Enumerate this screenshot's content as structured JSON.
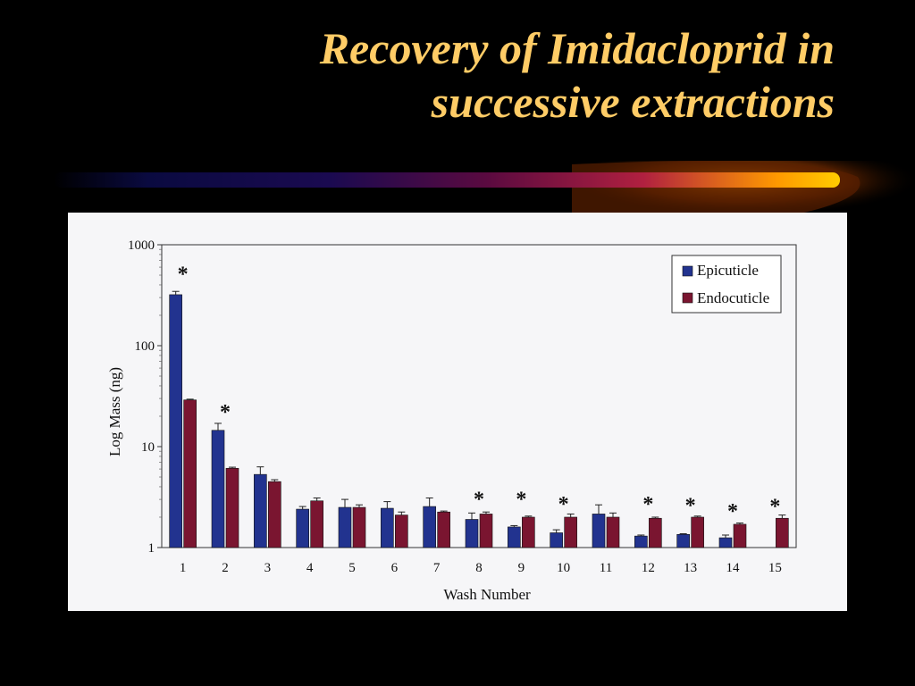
{
  "slide": {
    "title_line1": "Recovery of Imidacloprid in",
    "title_line2": "successive extractions"
  },
  "colors": {
    "title": "#ffcc66",
    "background": "#000000",
    "epicuticle": "#22338f",
    "endocuticle": "#7a1530",
    "panel": "#f6f6f8"
  },
  "chart_data": {
    "type": "bar",
    "title": "",
    "xlabel": "Wash Number",
    "ylabel": "Log Mass (ng)",
    "y_scale": "log",
    "ylim": [
      1,
      1000
    ],
    "y_ticks": [
      1,
      10,
      100,
      1000
    ],
    "y_tick_labels": [
      "1",
      "10",
      "100",
      "1000"
    ],
    "categories": [
      "1",
      "2",
      "3",
      "4",
      "5",
      "6",
      "7",
      "8",
      "9",
      "10",
      "11",
      "12",
      "13",
      "14",
      "15"
    ],
    "series": [
      {
        "name": "Epicuticle",
        "values": [
          320,
          14.5,
          5.3,
          2.4,
          2.5,
          2.45,
          2.55,
          1.9,
          1.6,
          1.4,
          2.15,
          1.3,
          1.35,
          1.25,
          null
        ],
        "error": [
          25,
          2.5,
          1.0,
          0.15,
          0.5,
          0.4,
          0.55,
          0.3,
          0.05,
          0.1,
          0.5,
          0.03,
          0.02,
          0.08,
          null
        ]
      },
      {
        "name": "Endocuticle",
        "values": [
          29,
          6.1,
          4.5,
          2.9,
          2.5,
          2.1,
          2.25,
          2.15,
          2.0,
          2.0,
          2.0,
          1.95,
          2.0,
          1.7,
          1.95
        ],
        "error": [
          0.5,
          0.15,
          0.2,
          0.2,
          0.15,
          0.15,
          0.05,
          0.1,
          0.05,
          0.15,
          0.2,
          0.05,
          0.05,
          0.05,
          0.15
        ]
      }
    ],
    "annotations": [
      {
        "category": "1",
        "text": "*",
        "value": 560
      },
      {
        "category": "2",
        "text": "*",
        "value": 24
      },
      {
        "category": "8",
        "text": "*",
        "value": 3.3
      },
      {
        "category": "9",
        "text": "*",
        "value": 3.3
      },
      {
        "category": "10",
        "text": "*",
        "value": 2.95
      },
      {
        "category": "12",
        "text": "*",
        "value": 2.95
      },
      {
        "category": "13",
        "text": "*",
        "value": 2.85
      },
      {
        "category": "14",
        "text": "*",
        "value": 2.5
      },
      {
        "category": "15",
        "text": "*",
        "value": 2.8
      }
    ],
    "legend_position": "top-right",
    "grid": false
  }
}
